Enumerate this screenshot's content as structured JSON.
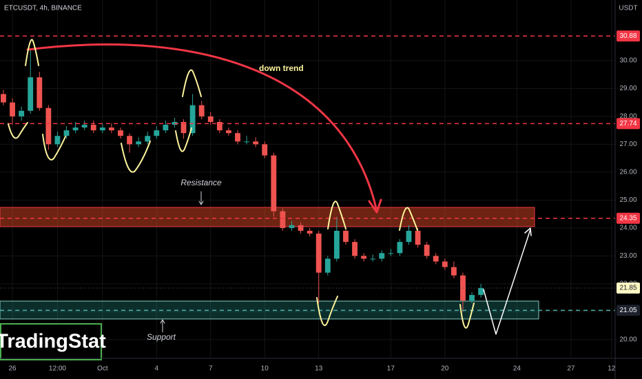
{
  "chart_data": {
    "type": "candlestick",
    "title": "ETCUSDT, 4h, BINANCE",
    "currency": "USDT",
    "x": [
      -0.5,
      0,
      0.5,
      1,
      1.5,
      2,
      2.5,
      3,
      3.5,
      4,
      4.5,
      5,
      5.5,
      6,
      6.5,
      7,
      7.5,
      8,
      8.5,
      9,
      9.5,
      10,
      10.5,
      11,
      11.5,
      12,
      12.5,
      13,
      13.5,
      14,
      14.5,
      15,
      15.5,
      16,
      16.5,
      17,
      17.5,
      18,
      18.5,
      19,
      19.5,
      20,
      20.5,
      21,
      21.5,
      22,
      22.5,
      23,
      23.5,
      24,
      24.5,
      25,
      25.5,
      26
    ],
    "open": [
      28.8,
      28.5,
      28.0,
      28.2,
      29.4,
      28.3,
      27.0,
      27.3,
      27.5,
      27.6,
      27.7,
      27.5,
      27.6,
      27.5,
      27.3,
      27.0,
      27.1,
      27.3,
      27.5,
      27.7,
      27.8,
      27.4,
      28.4,
      28.0,
      27.8,
      27.5,
      27.4,
      27.1,
      27.1,
      27.0,
      26.6,
      24.6,
      24.0,
      24.1,
      23.9,
      23.8,
      22.4,
      22.9,
      23.9,
      23.5,
      23.0,
      22.9,
      22.9,
      23.1,
      23.1,
      23.5,
      23.9,
      23.4,
      23.0,
      22.8,
      22.6,
      22.3,
      21.4,
      21.6
    ],
    "high": [
      28.95,
      28.65,
      28.35,
      30.4,
      29.6,
      28.4,
      27.45,
      27.65,
      27.8,
      27.85,
      27.85,
      27.75,
      27.75,
      27.6,
      27.4,
      27.25,
      27.45,
      27.65,
      27.85,
      27.95,
      27.9,
      28.8,
      28.55,
      28.15,
      27.9,
      27.6,
      27.5,
      27.3,
      27.25,
      27.1,
      26.7,
      24.7,
      24.25,
      24.2,
      24.0,
      23.9,
      23.0,
      24.4,
      24.0,
      23.6,
      23.1,
      23.05,
      23.2,
      23.25,
      23.6,
      24.1,
      24.0,
      23.5,
      23.1,
      22.9,
      22.8,
      22.4,
      21.7,
      22.0
    ],
    "low": [
      28.4,
      27.7,
      27.85,
      28.1,
      28.2,
      26.8,
      26.9,
      27.2,
      27.4,
      27.5,
      27.4,
      27.4,
      27.4,
      27.2,
      26.7,
      26.9,
      27.0,
      27.2,
      27.4,
      27.6,
      27.2,
      27.3,
      27.9,
      27.7,
      27.4,
      27.3,
      27.0,
      27.0,
      26.9,
      26.5,
      24.4,
      23.9,
      23.9,
      23.8,
      23.7,
      21.3,
      22.3,
      22.8,
      23.4,
      22.9,
      22.8,
      22.8,
      22.8,
      23.0,
      23.0,
      23.4,
      23.3,
      22.9,
      22.7,
      22.5,
      22.2,
      21.0,
      21.3,
      21.5
    ],
    "close": [
      28.5,
      28.0,
      28.2,
      29.4,
      28.3,
      27.0,
      27.3,
      27.5,
      27.6,
      27.7,
      27.5,
      27.6,
      27.5,
      27.3,
      27.0,
      27.1,
      27.3,
      27.5,
      27.7,
      27.8,
      27.4,
      28.4,
      28.0,
      27.8,
      27.5,
      27.4,
      27.1,
      27.1,
      27.0,
      26.6,
      24.6,
      24.0,
      24.1,
      23.9,
      23.8,
      22.4,
      22.9,
      23.9,
      23.5,
      23.0,
      22.9,
      22.9,
      23.1,
      23.1,
      23.5,
      23.9,
      23.4,
      23.0,
      22.8,
      22.6,
      22.3,
      21.4,
      21.6,
      21.85
    ],
    "up_color": "#26a69a",
    "down_color": "#ef5350",
    "xlim": [
      -0.69,
      33.45
    ],
    "xticks": [
      {
        "value": 0,
        "label": "26"
      },
      {
        "value": 2.5,
        "label": "12:00"
      },
      {
        "value": 5,
        "label": "Oct"
      },
      {
        "value": 8,
        "label": "4"
      },
      {
        "value": 11,
        "label": "7"
      },
      {
        "value": 14,
        "label": "10"
      },
      {
        "value": 17,
        "label": "13"
      },
      {
        "value": 21,
        "label": "17"
      },
      {
        "value": 24,
        "label": "20"
      },
      {
        "value": 28,
        "label": "24"
      },
      {
        "value": 31,
        "label": "27"
      },
      {
        "value": 33.25,
        "label": "12"
      }
    ],
    "ylim": [
      19.33,
      32.17
    ],
    "yticks": [
      {
        "value": 20,
        "label": "20.00"
      },
      {
        "value": 21,
        "label": "21.00"
      },
      {
        "value": 22,
        "label": "22.00"
      },
      {
        "value": 23,
        "label": "23.00"
      },
      {
        "value": 24,
        "label": "24.00"
      },
      {
        "value": 25,
        "label": "25.00"
      },
      {
        "value": 26,
        "label": "26.00"
      },
      {
        "value": 27,
        "label": "27.00"
      },
      {
        "value": 28,
        "label": "28.00"
      },
      {
        "value": 29,
        "label": "29.00"
      },
      {
        "value": 30,
        "label": "30.00"
      }
    ],
    "grid": true,
    "price_lines": [
      {
        "value": 30.88,
        "color": "#f23645",
        "style": "dashed",
        "label_fill": "#f23645",
        "label_color": "#ffffff"
      },
      {
        "value": 27.74,
        "color": "#f23645",
        "style": "dashed",
        "label_fill": "#f23645",
        "label_color": "#ffffff"
      },
      {
        "value": 24.35,
        "color": "#f23645",
        "style": "dashed",
        "label_fill": "#f23645",
        "label_color": "#ffffff"
      },
      {
        "value": 21.85,
        "color": "#5d606b",
        "style": "dotted",
        "label_fill": "#fff9c4",
        "label_color": "#131722"
      },
      {
        "value": 21.05,
        "color": "#4db6ac",
        "style": "dashed",
        "label_fill": "#1e222d",
        "label_color": "#ffffff"
      }
    ],
    "zones": [
      {
        "name": "Resistance",
        "from": 24.05,
        "to": 24.74,
        "color": "#f23645",
        "fill": "rgba(242,80,40,0.45)"
      },
      {
        "name": "Support",
        "from": 20.74,
        "to": 21.38,
        "color": "#80cbc4",
        "fill": "rgba(38,166,154,0.28)"
      }
    ],
    "annotation": "down trend",
    "watermark": "TradingStat"
  }
}
